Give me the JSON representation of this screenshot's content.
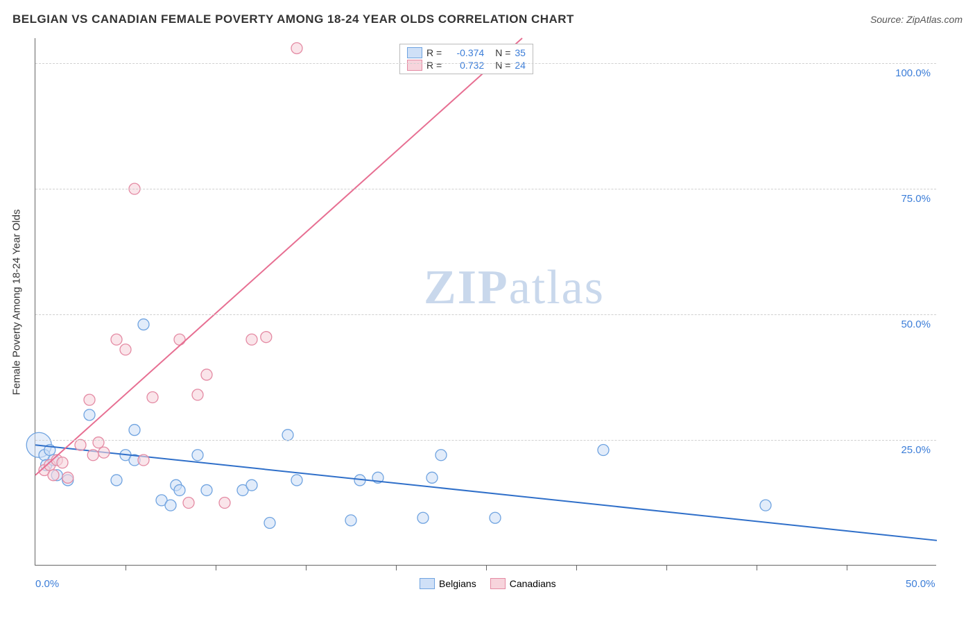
{
  "title": "BELGIAN VS CANADIAN FEMALE POVERTY AMONG 18-24 YEAR OLDS CORRELATION CHART",
  "source_label": "Source: ZipAtlas.com",
  "y_axis_label": "Female Poverty Among 18-24 Year Olds",
  "chart": {
    "type": "scatter",
    "xlim": [
      0,
      50
    ],
    "ylim": [
      0,
      105
    ],
    "x_ticks_labeled": [
      {
        "v": 0,
        "label": "0.0%"
      },
      {
        "v": 50,
        "label": "50.0%"
      }
    ],
    "x_ticks_minor": [
      5,
      10,
      15,
      20,
      25,
      30,
      35,
      40,
      45
    ],
    "y_ticks": [
      {
        "v": 25,
        "label": "25.0%"
      },
      {
        "v": 50,
        "label": "50.0%"
      },
      {
        "v": 75,
        "label": "75.0%"
      },
      {
        "v": 100,
        "label": "100.0%"
      }
    ],
    "grid_color": "#d0d0d0",
    "background_color": "#ffffff",
    "marker_radius": 8,
    "marker_stroke_width": 1.3,
    "line_width": 2,
    "series": [
      {
        "name": "Belgians",
        "fill": "#cfe0f7",
        "stroke": "#6fa3e0",
        "line_color": "#2f6fc9",
        "R": "-0.374",
        "N": "35",
        "trend": {
          "x1": 0,
          "y1": 24,
          "x2": 50,
          "y2": 5
        },
        "big_point": {
          "x": 0.2,
          "y": 24,
          "r": 18
        },
        "points": [
          [
            0.5,
            22
          ],
          [
            0.6,
            20
          ],
          [
            0.8,
            23
          ],
          [
            1.0,
            21
          ],
          [
            1.2,
            18
          ],
          [
            1.8,
            17
          ],
          [
            3.0,
            30
          ],
          [
            4.5,
            17
          ],
          [
            5.0,
            22
          ],
          [
            5.5,
            21
          ],
          [
            5.5,
            27
          ],
          [
            6.0,
            48
          ],
          [
            7.0,
            13
          ],
          [
            7.5,
            12
          ],
          [
            7.8,
            16
          ],
          [
            8.0,
            15
          ],
          [
            9.0,
            22
          ],
          [
            9.5,
            15
          ],
          [
            11.5,
            15
          ],
          [
            12.0,
            16
          ],
          [
            13.0,
            8.5
          ],
          [
            14.0,
            26
          ],
          [
            14.5,
            17
          ],
          [
            17.5,
            9
          ],
          [
            18.0,
            17
          ],
          [
            19.0,
            17.5
          ],
          [
            21.5,
            9.5
          ],
          [
            22.0,
            17.5
          ],
          [
            22.5,
            22
          ],
          [
            25.5,
            9.5
          ],
          [
            31.5,
            23
          ],
          [
            40.5,
            12
          ]
        ]
      },
      {
        "name": "Canadians",
        "fill": "#f7d4dc",
        "stroke": "#e48aa3",
        "line_color": "#e76f92",
        "R": "0.732",
        "N": "24",
        "trend": {
          "x1": 0,
          "y1": 18,
          "x2": 27,
          "y2": 105
        },
        "points": [
          [
            0.5,
            19
          ],
          [
            0.8,
            20
          ],
          [
            1.0,
            18
          ],
          [
            1.2,
            21
          ],
          [
            1.5,
            20.5
          ],
          [
            1.8,
            17.5
          ],
          [
            2.5,
            24
          ],
          [
            3.0,
            33
          ],
          [
            3.2,
            22
          ],
          [
            3.5,
            24.5
          ],
          [
            3.8,
            22.5
          ],
          [
            4.5,
            45
          ],
          [
            5.0,
            43
          ],
          [
            5.5,
            75
          ],
          [
            6.0,
            21
          ],
          [
            6.5,
            33.5
          ],
          [
            8.0,
            45
          ],
          [
            8.5,
            12.5
          ],
          [
            9.0,
            34
          ],
          [
            9.5,
            38
          ],
          [
            10.5,
            12.5
          ],
          [
            12.0,
            45
          ],
          [
            12.8,
            45.5
          ],
          [
            14.5,
            103
          ]
        ]
      }
    ]
  },
  "stats_legend": {
    "r_label": "R =",
    "n_label": "N ="
  },
  "bottom_legend": {
    "items": [
      "Belgians",
      "Canadians"
    ]
  },
  "watermark_zip": "ZIP",
  "watermark_atlas": "atlas"
}
